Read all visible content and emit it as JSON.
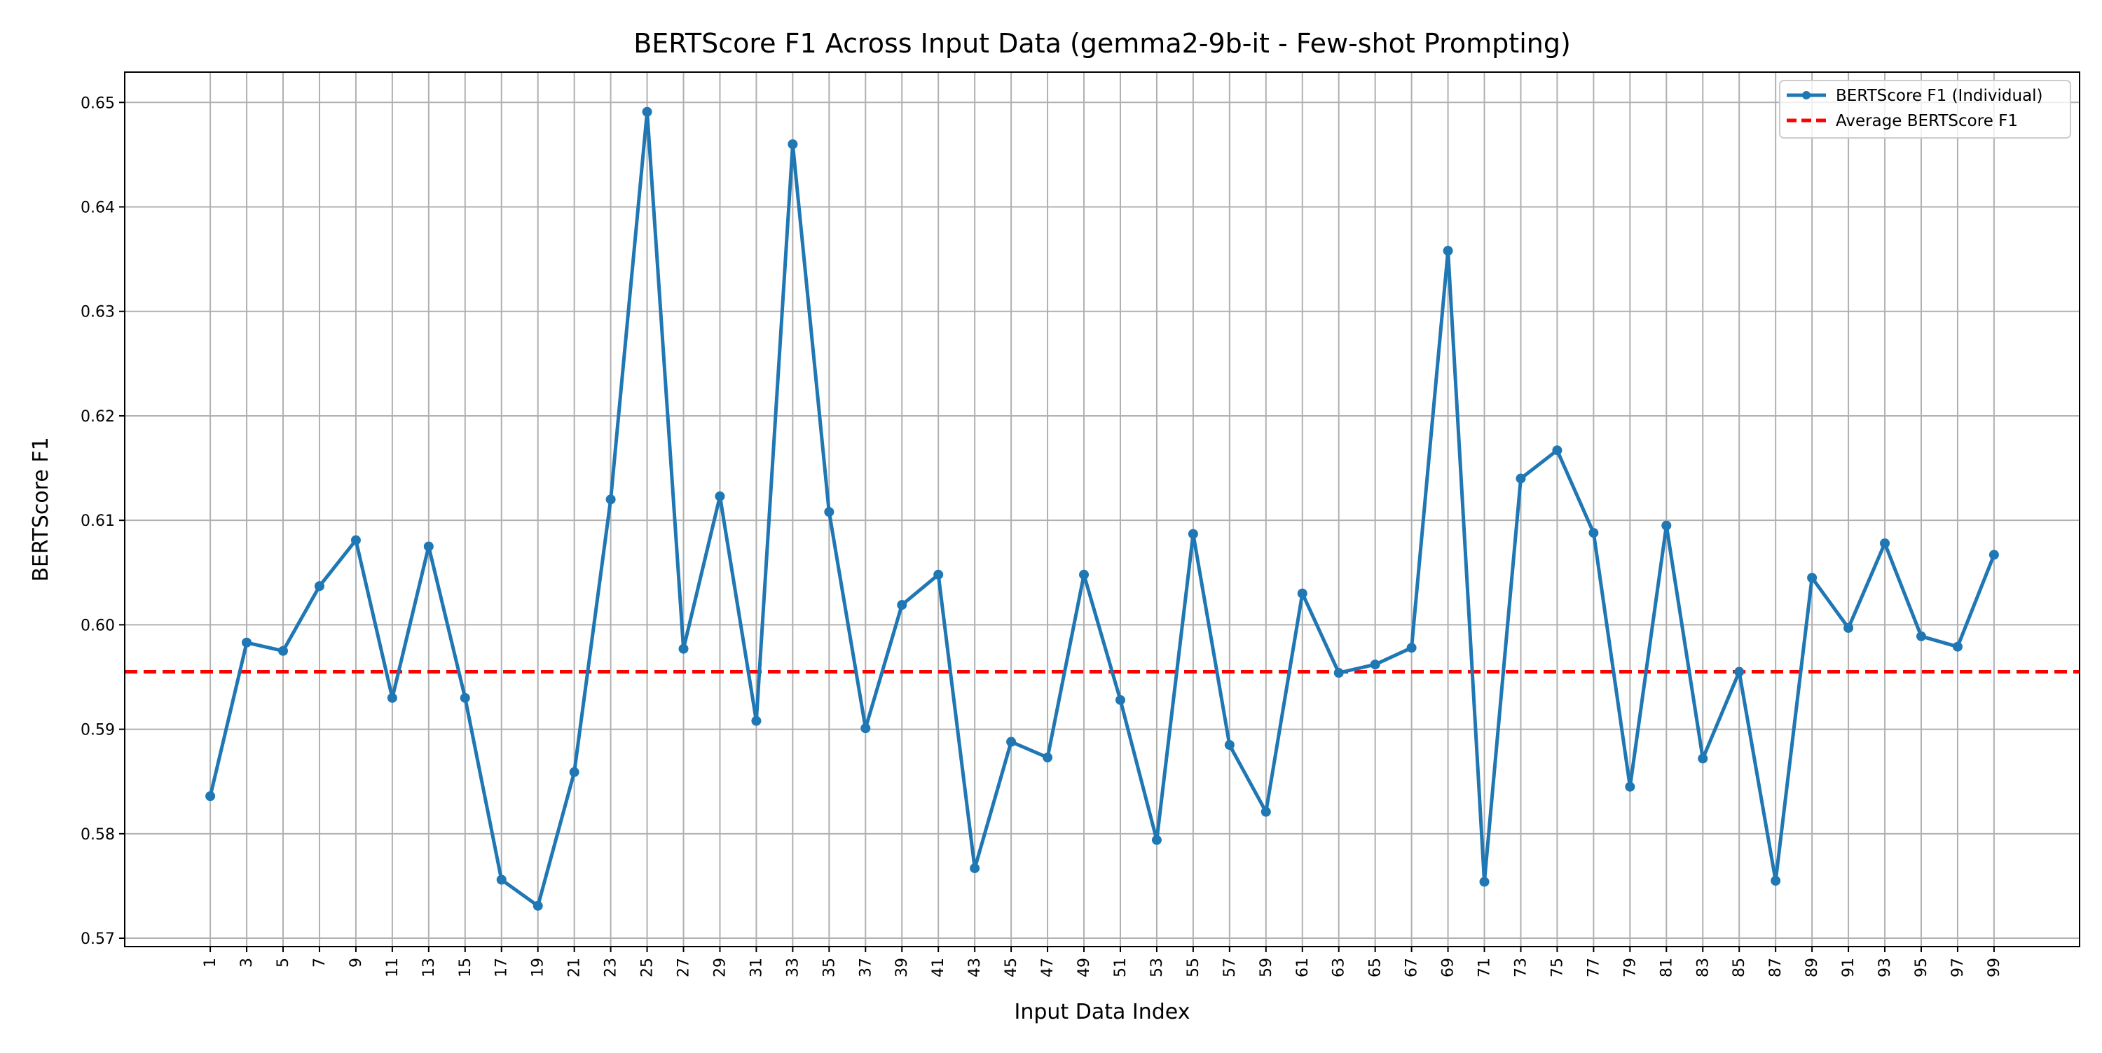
{
  "chart_data": {
    "type": "line",
    "title": "BERTScore F1 Across Input Data (gemma2-9b-it - Few-shot Prompting)",
    "xlabel": "Input Data Index",
    "ylabel": "BERTScore F1",
    "ylim": [
      0.5692,
      0.6529
    ],
    "yticks": [
      0.57,
      0.58,
      0.59,
      0.6,
      0.61,
      0.62,
      0.63,
      0.64,
      0.65
    ],
    "ytick_labels": [
      "0.57",
      "0.58",
      "0.59",
      "0.60",
      "0.61",
      "0.62",
      "0.63",
      "0.64",
      "0.65"
    ],
    "grid": true,
    "legend_position": "top-right",
    "x": [
      1,
      3,
      5,
      7,
      9,
      11,
      13,
      15,
      17,
      19,
      21,
      23,
      25,
      27,
      29,
      31,
      33,
      35,
      37,
      39,
      41,
      43,
      45,
      47,
      49,
      51,
      53,
      55,
      57,
      59,
      61,
      63,
      65,
      67,
      69,
      71,
      73,
      75,
      77,
      79,
      81,
      83,
      85,
      87,
      89,
      91,
      93,
      95,
      97,
      99
    ],
    "series": [
      {
        "name": "BERTScore F1 (Individual)",
        "color": "#1f77b4",
        "style": "solid-with-markers",
        "values": [
          0.5836,
          0.5983,
          0.5975,
          0.6037,
          0.6081,
          0.593,
          0.6075,
          0.593,
          0.5756,
          0.5731,
          0.5859,
          0.612,
          0.6491,
          0.5977,
          0.6123,
          0.5908,
          0.646,
          0.6108,
          0.5901,
          0.6019,
          0.6048,
          0.5767,
          0.5888,
          0.5873,
          0.6048,
          0.5928,
          0.5794,
          0.6087,
          0.5885,
          0.5821,
          0.603,
          0.5954,
          0.5962,
          0.5978,
          0.6358,
          0.5754,
          0.614,
          0.6167,
          0.6088,
          0.5845,
          0.6095,
          0.5872,
          0.5955,
          0.5755,
          0.6045,
          0.5997,
          0.6078,
          0.5989,
          0.5979,
          0.6067
        ]
      },
      {
        "name": "Average BERTScore F1",
        "color": "#ff0000",
        "style": "dashed",
        "value": 0.5955
      }
    ]
  }
}
